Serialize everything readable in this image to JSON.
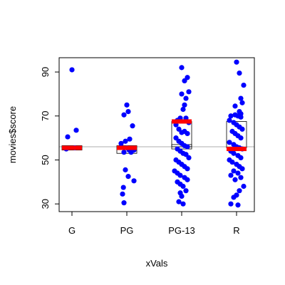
{
  "chart_data": {
    "type": "scatter",
    "title": "",
    "xlabel": "xVals",
    "ylabel": "movies$score",
    "categories": [
      "G",
      "PG",
      "PG-13",
      "R"
    ],
    "yticks": [
      30,
      50,
      70,
      90
    ],
    "ylim": [
      26.5,
      96.5
    ],
    "reference_line": 56,
    "colors": {
      "points": "#0000ff",
      "means": "#ff0000",
      "refline": "#bebebe",
      "boxes": "#000000"
    },
    "series": [
      {
        "name": "G",
        "mean": 55.5,
        "boxes": [
          [
            54.5,
            56.5
          ]
        ],
        "points": [
          [
            -0.15,
            60.5
          ],
          [
            0.0,
            91
          ],
          [
            0.15,
            63.5
          ],
          [
            -0.2,
            55
          ],
          [
            0.1,
            55.5
          ]
        ]
      },
      {
        "name": "PG",
        "mean": 55.5,
        "boxes": [
          [
            53,
            56.5
          ]
        ],
        "points": [
          [
            -0.15,
            34.5
          ],
          [
            -0.12,
            37.5
          ],
          [
            -0.1,
            30.5
          ],
          [
            0.25,
            40.5
          ],
          [
            -0.05,
            45.5
          ],
          [
            0.05,
            42.5
          ],
          [
            0.15,
            53.5
          ],
          [
            0.25,
            54.5
          ],
          [
            -0.2,
            57.5
          ],
          [
            0.1,
            59.5
          ],
          [
            -0.05,
            58.5
          ],
          [
            0.2,
            65.5
          ],
          [
            -0.1,
            70.5
          ],
          [
            0.05,
            72
          ],
          [
            0.0,
            75
          ],
          [
            0.08,
            54.5
          ],
          [
            0.0,
            55.5
          ],
          [
            -0.1,
            53.5
          ]
        ]
      },
      {
        "name": "PG-13",
        "mean": 67.5,
        "boxes": [
          [
            56,
            67.5
          ],
          [
            55,
            57
          ]
        ],
        "points": [
          [
            0.0,
            92
          ],
          [
            0.1,
            86
          ],
          [
            0.2,
            87.5
          ],
          [
            0.25,
            81
          ],
          [
            0.15,
            78
          ],
          [
            0.0,
            80
          ],
          [
            0.1,
            75
          ],
          [
            0.05,
            73
          ],
          [
            -0.15,
            68
          ],
          [
            -0.05,
            69
          ],
          [
            0.15,
            69
          ],
          [
            0.25,
            67
          ],
          [
            -0.2,
            66
          ],
          [
            -0.1,
            64
          ],
          [
            0.0,
            62.5
          ],
          [
            0.1,
            63
          ],
          [
            0.2,
            62
          ],
          [
            -0.2,
            60
          ],
          [
            -0.1,
            58.5
          ],
          [
            0.0,
            57.5
          ],
          [
            0.1,
            56.5
          ],
          [
            0.2,
            56
          ],
          [
            -0.15,
            55
          ],
          [
            -0.05,
            54
          ],
          [
            0.05,
            53
          ],
          [
            0.15,
            52.5
          ],
          [
            0.25,
            51
          ],
          [
            -0.2,
            50
          ],
          [
            -0.1,
            49
          ],
          [
            0.0,
            48
          ],
          [
            0.1,
            47
          ],
          [
            0.2,
            46
          ],
          [
            -0.25,
            45
          ],
          [
            -0.15,
            44
          ],
          [
            -0.05,
            43
          ],
          [
            0.1,
            42
          ],
          [
            0.2,
            41
          ],
          [
            -0.15,
            40
          ],
          [
            -0.05,
            39
          ],
          [
            0.05,
            38
          ],
          [
            0.15,
            36
          ],
          [
            -0.05,
            35
          ],
          [
            0.0,
            33.5
          ],
          [
            -0.1,
            31
          ],
          [
            0.05,
            30
          ]
        ]
      },
      {
        "name": "R",
        "mean": 55,
        "boxes": [
          [
            55.5,
            67.5
          ]
        ],
        "points": [
          [
            0.0,
            94.5
          ],
          [
            0.1,
            89.5
          ],
          [
            0.25,
            84
          ],
          [
            0.15,
            78
          ],
          [
            0.2,
            76
          ],
          [
            -0.05,
            74.5
          ],
          [
            0.1,
            72
          ],
          [
            0.15,
            71
          ],
          [
            -0.2,
            70
          ],
          [
            -0.05,
            70.5
          ],
          [
            0.05,
            70
          ],
          [
            0.15,
            69.5
          ],
          [
            -0.25,
            68
          ],
          [
            -0.1,
            67
          ],
          [
            0.0,
            66
          ],
          [
            0.1,
            65
          ],
          [
            0.2,
            64
          ],
          [
            -0.15,
            63
          ],
          [
            -0.05,
            62
          ],
          [
            0.05,
            61
          ],
          [
            0.15,
            60
          ],
          [
            -0.25,
            58
          ],
          [
            -0.1,
            57
          ],
          [
            0.0,
            56
          ],
          [
            0.1,
            55.5
          ],
          [
            0.2,
            55
          ],
          [
            -0.2,
            54
          ],
          [
            -0.1,
            53
          ],
          [
            0.05,
            52
          ],
          [
            0.15,
            51
          ],
          [
            -0.25,
            50
          ],
          [
            -0.15,
            49
          ],
          [
            0.0,
            48
          ],
          [
            0.1,
            47
          ],
          [
            0.2,
            46
          ],
          [
            -0.1,
            45
          ],
          [
            0.05,
            44
          ],
          [
            -0.2,
            43
          ],
          [
            0.15,
            42
          ],
          [
            -0.05,
            41
          ],
          [
            0.25,
            38
          ],
          [
            0.1,
            36
          ],
          [
            0.0,
            34
          ],
          [
            -0.2,
            30
          ],
          [
            0.05,
            29.5
          ],
          [
            -0.1,
            33
          ]
        ]
      }
    ]
  }
}
